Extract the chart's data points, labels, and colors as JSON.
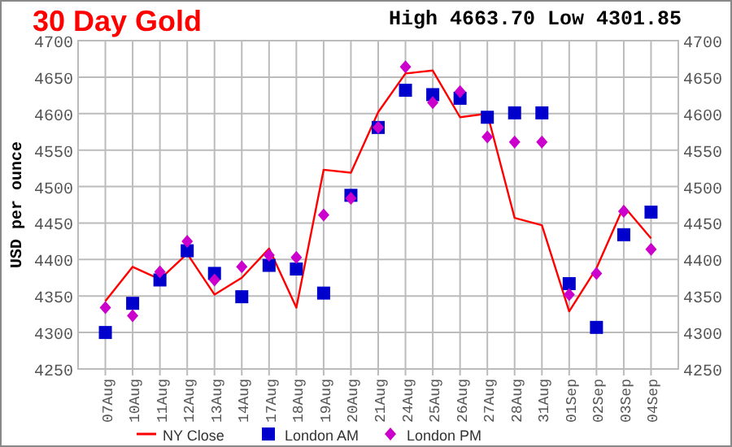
{
  "chart_data": {
    "type": "line",
    "title": "30 Day Gold",
    "subtitle": "High 4663.70 Low 4301.85",
    "ylabel": "USD per ounce",
    "categories": [
      "07Aug",
      "10Aug",
      "11Aug",
      "12Aug",
      "13Aug",
      "14Aug",
      "17Aug",
      "18Aug",
      "19Aug",
      "20Aug",
      "21Aug",
      "24Aug",
      "25Aug",
      "26Aug",
      "27Aug",
      "28Aug",
      "31Aug",
      "01Sep",
      "02Sep",
      "03Sep",
      "04Sep"
    ],
    "series": [
      {
        "name": "NY Close",
        "color": "#ff0000",
        "marker": "none",
        "values": [
          4343,
          4390,
          4373,
          4408,
          4352,
          4375,
          4415,
          4334,
          4523,
          4519,
          4602,
          4655,
          4659,
          4595,
          4600,
          4457,
          4447,
          4329,
          4388,
          4473,
          4429
        ]
      },
      {
        "name": "London AM",
        "type": "scatter",
        "color": "#0000cc",
        "marker": "square",
        "values": [
          4300,
          4340,
          4372,
          4412,
          4381,
          4349,
          4392,
          4387,
          4354,
          4488,
          4581,
          4632,
          4626,
          4621,
          4595,
          4601,
          4601,
          4367,
          4307,
          4434,
          4465
        ]
      },
      {
        "name": "London PM",
        "type": "scatter",
        "color": "#cc00cc",
        "marker": "diamond",
        "values": [
          4334,
          4323,
          4383,
          4425,
          4372,
          4390,
          4406,
          4403,
          4461,
          4484,
          4581,
          4664,
          4615,
          4630,
          4568,
          4561,
          4561,
          4352,
          4381,
          4466,
          4414
        ]
      }
    ],
    "ylim": [
      4250,
      4700
    ],
    "yticks": [
      4250,
      4300,
      4350,
      4400,
      4450,
      4500,
      4550,
      4600,
      4650,
      4700
    ],
    "y2lim": [
      4250,
      4700
    ],
    "y2ticks": [
      4250,
      4300,
      4350,
      4400,
      4450,
      4500,
      4550,
      4600,
      4650,
      4700
    ],
    "grid": true,
    "legend": "bottom"
  }
}
